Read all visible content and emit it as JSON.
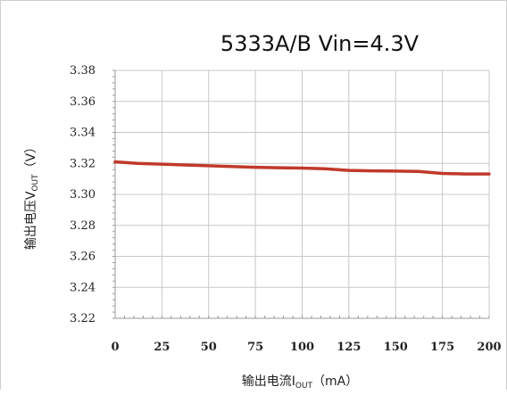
{
  "chart_data": {
    "type": "line",
    "title": "5333A/B  Vin=4.3V",
    "xlabel": {
      "main": "输出电流I",
      "sub": "OUT",
      "unit": "（mA）"
    },
    "ylabel": {
      "main": "输出电压V",
      "sub": "OUT",
      "unit": "（V）"
    },
    "xlim": [
      0,
      200
    ],
    "ylim": [
      3.22,
      3.38
    ],
    "x_ticks": [
      "0",
      "25",
      "50",
      "75",
      "100",
      "125",
      "150",
      "175",
      "200"
    ],
    "y_ticks": [
      "3.38",
      "3.36",
      "3.34",
      "3.32",
      "3.30",
      "3.28",
      "3.26",
      "3.24",
      "3.22"
    ],
    "grid": true,
    "series": [
      {
        "color": "#c0392b",
        "x": [
          0,
          12,
          25,
          37,
          50,
          62,
          75,
          87,
          100,
          112,
          125,
          137,
          150,
          162,
          175,
          187,
          200
        ],
        "y": [
          3.321,
          3.32,
          3.3195,
          3.319,
          3.3185,
          3.318,
          3.3175,
          3.3172,
          3.317,
          3.3165,
          3.3155,
          3.3152,
          3.315,
          3.3148,
          3.3135,
          3.3132,
          3.3132
        ]
      }
    ]
  }
}
